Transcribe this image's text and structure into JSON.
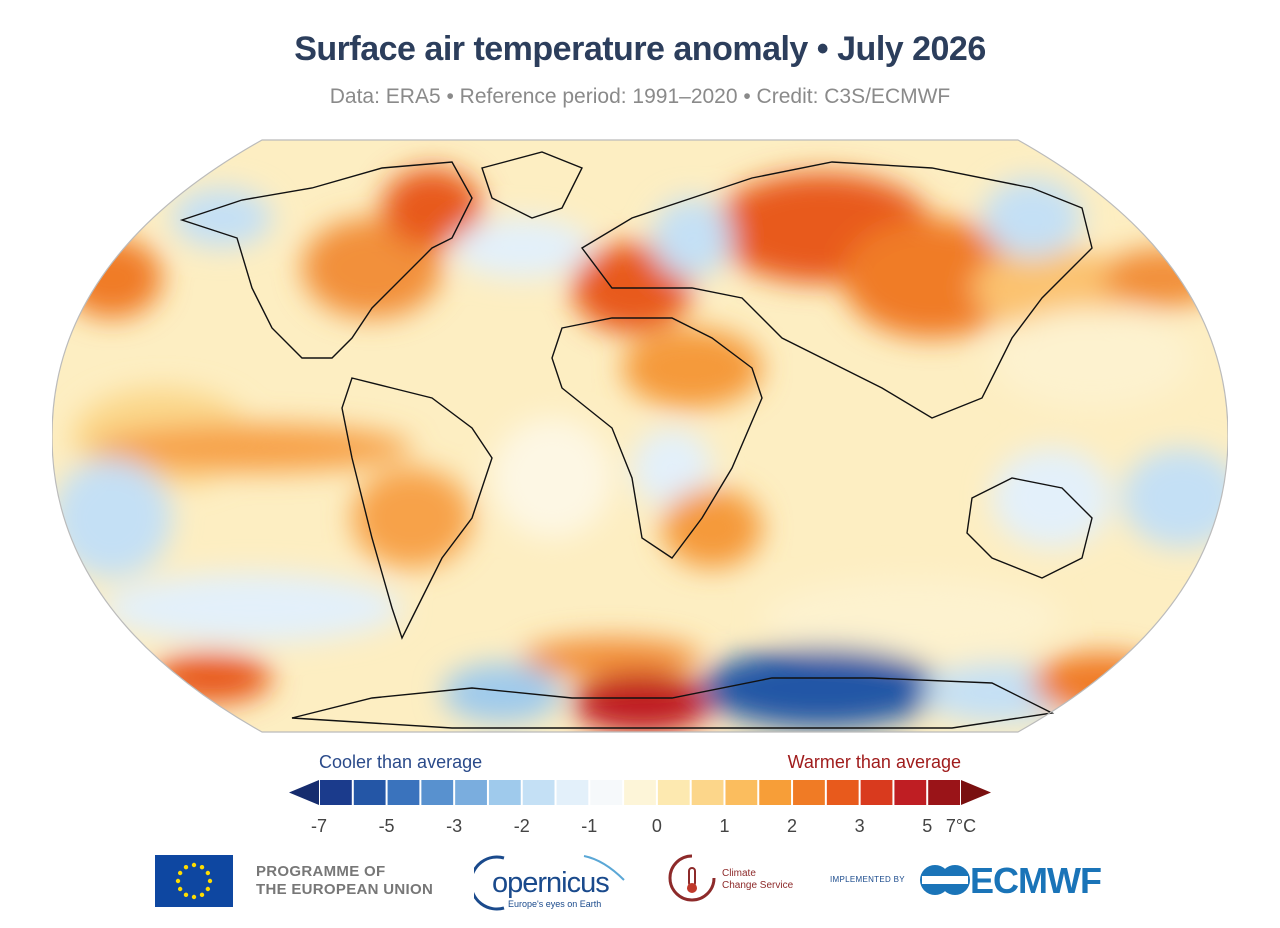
{
  "title": "Surface air temperature anomaly • July 2026",
  "subtitle": "Data: ERA5 • Reference period: 1991–2020 • Credit: C3S/ECMWF",
  "legend": {
    "cool_label": "Cooler than average",
    "warm_label": "Warmer than average",
    "tick_labels": [
      "-7",
      "-5",
      "-3",
      "-2",
      "-1",
      "0",
      "1",
      "2",
      "3",
      "5",
      "7°C"
    ],
    "colors": [
      "#1b3b8c",
      "#2456a6",
      "#3a73bd",
      "#5891cf",
      "#7aadde",
      "#9fcaec",
      "#c4e0f5",
      "#e3f0fa",
      "#f6f9fb",
      "#fdf5d8",
      "#fde9b0",
      "#fcd68a",
      "#fbbd5e",
      "#f79e38",
      "#f07b25",
      "#e85a1c",
      "#d93a1e",
      "#bf1e23",
      "#9a1418"
    ],
    "low_arrow_color": "#162c6e",
    "high_arrow_color": "#7a1010"
  },
  "logos": {
    "eu_line1": "PROGRAMME OF",
    "eu_line2": "THE EUROPEAN UNION",
    "copernicus": "opernicus",
    "copernicus_tag": "Europe's eyes on Earth",
    "c3s_line1": "Climate",
    "c3s_line2": "Change Service",
    "implemented_by": "IMPLEMENTED BY",
    "ecmwf": "ECMWF"
  }
}
